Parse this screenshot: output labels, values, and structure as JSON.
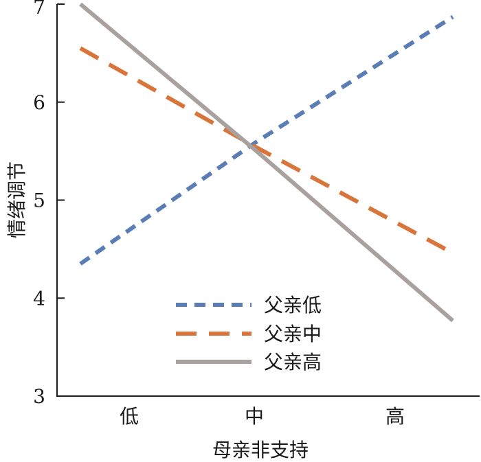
{
  "chart_data": {
    "type": "line",
    "categories": [
      "低",
      "中",
      "高"
    ],
    "xlabel": "母亲非支持",
    "ylabel": "情绪调节",
    "ylim": [
      3,
      7
    ],
    "yticks": [
      3,
      4,
      5,
      6,
      7
    ],
    "grid": false,
    "legend_position": "bottom-center",
    "series": [
      {
        "name": "父亲低",
        "values": [
          4.35,
          5.58,
          6.87
        ],
        "color": "#5b7db5",
        "dash": "short"
      },
      {
        "name": "父亲中",
        "values": [
          6.55,
          5.55,
          4.46
        ],
        "color": "#d9743a",
        "dash": "long"
      },
      {
        "name": "父亲高",
        "values": [
          7.0,
          5.52,
          3.77
        ],
        "color": "#a9a19e",
        "dash": "solid"
      }
    ]
  }
}
